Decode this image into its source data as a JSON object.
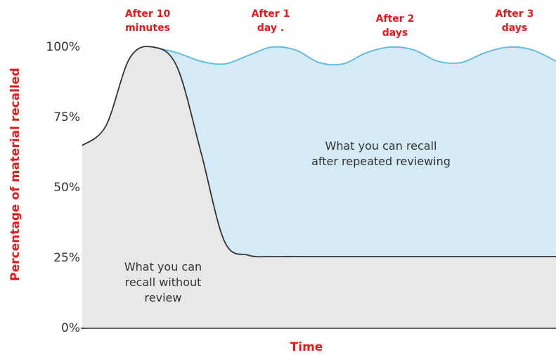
{
  "chart_data": {
    "type": "area",
    "ylabel": "Percentage of material recalled",
    "xlabel": "Time",
    "categories": [
      null,
      null,
      null,
      null,
      null,
      null,
      null,
      null,
      null,
      null,
      null,
      null,
      null,
      null,
      null,
      null,
      null,
      null,
      null,
      null,
      null
    ],
    "series": [
      {
        "name": "What you can recall without review",
        "color": "#e8e8e8",
        "line_color": "#333333",
        "values": [
          65,
          72,
          96,
          100,
          93,
          63,
          31,
          26,
          25.5,
          25.5,
          25.5,
          25.5,
          25.5,
          25.5,
          25.5,
          25.5,
          25.5,
          25.5,
          25.5,
          25.5,
          25.5
        ]
      },
      {
        "name": "What you can recall after repeated reviewing",
        "color": "#d4eaf6",
        "line_color": "#5bb8e0",
        "values": [
          null,
          null,
          null,
          100,
          98,
          95,
          94,
          97,
          100,
          99,
          94.5,
          94,
          98,
          100,
          99,
          95,
          94.5,
          98,
          100,
          99,
          95
        ]
      }
    ],
    "region_labels": [
      [
        "What you can recall",
        "after repeated reviewing"
      ],
      [
        "What you can",
        "recall without",
        "review"
      ]
    ],
    "annotations": [
      [
        "After 10",
        "minutes"
      ],
      [
        "After 1",
        "day ."
      ],
      [
        "After 2",
        "days"
      ],
      [
        "After 3",
        "days"
      ]
    ],
    "ylim": [
      0,
      100
    ],
    "yticks": [
      {
        "value": 0,
        "label": "0%"
      },
      {
        "value": 25,
        "label": "25%"
      },
      {
        "value": 50,
        "label": "50%"
      },
      {
        "value": 75,
        "label": "75%"
      },
      {
        "value": 100,
        "label": "100%"
      }
    ]
  }
}
